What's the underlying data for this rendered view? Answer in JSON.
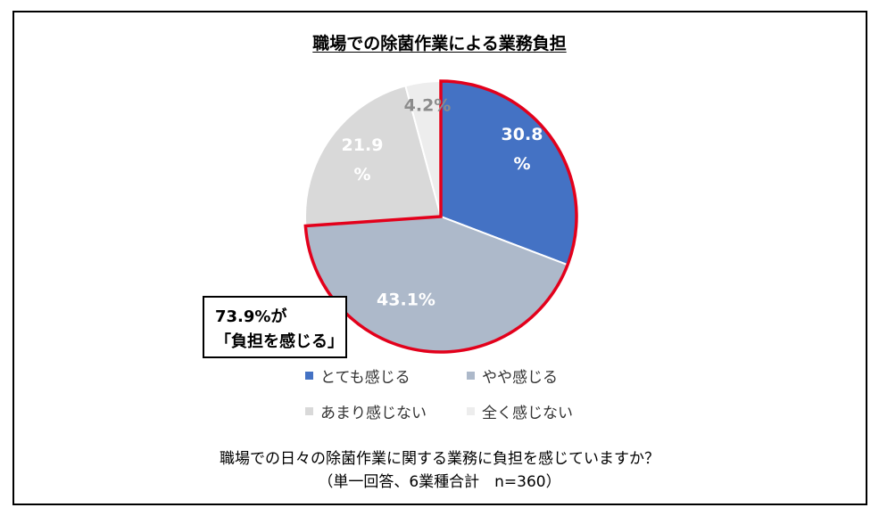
{
  "chart_data": {
    "type": "pie",
    "title": "職場での除菌作業による業務負担",
    "slices": [
      {
        "label": "とても感じる",
        "value": 30.8,
        "display": [
          "30.8",
          "%"
        ],
        "color": "#4472C4",
        "text_color": "#ffffff"
      },
      {
        "label": "やや感じる",
        "value": 43.1,
        "display": [
          "43.1%"
        ],
        "color": "#ADB9CA",
        "text_color": "#ffffff"
      },
      {
        "label": "あまり感じない",
        "value": 21.9,
        "display": [
          "21.9",
          "%"
        ],
        "color": "#D9D9D9",
        "text_color": "#ffffff"
      },
      {
        "label": "全く感じない",
        "value": 4.2,
        "display": [
          "4.2%"
        ],
        "color": "#EDEDED",
        "text_color": "#8C8C8C"
      }
    ],
    "highlight": {
      "color": "#E3001B",
      "lines": [
        "73.9%が",
        "「負担を感じる」"
      ]
    },
    "legend_placement": "bottom"
  },
  "question": [
    "職場での日々の除菌作業に関する業務に負担を感じていますか？",
    "（単一回答、6業種合計　n=360）"
  ]
}
